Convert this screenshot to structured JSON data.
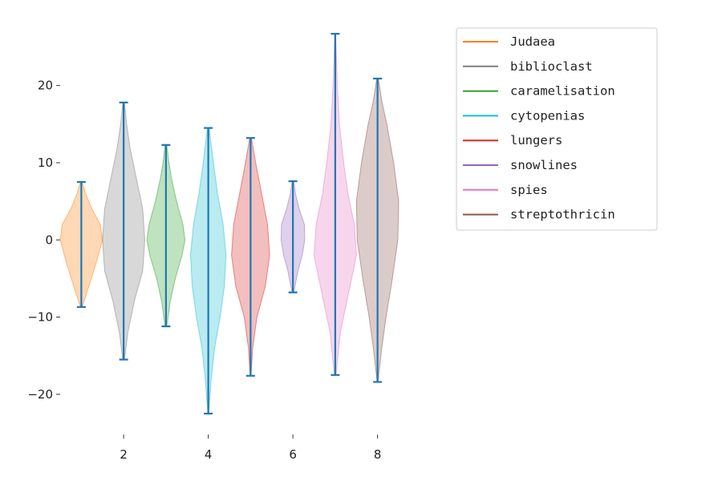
{
  "chart_data": {
    "type": "violin",
    "title": "",
    "xlabel": "",
    "ylabel": "",
    "xlim": [
      0.5,
      8.5
    ],
    "ylim": [
      -25,
      29
    ],
    "x_ticks": [
      2,
      4,
      6,
      8
    ],
    "y_ticks": [
      -20,
      -10,
      0,
      10,
      20
    ],
    "grid": false,
    "legend": {
      "placement": "upper-right-outside",
      "entries": [
        {
          "label": "Judaea",
          "color": "#ff7f0e"
        },
        {
          "label": "biblioclast",
          "color": "#7f7f7f"
        },
        {
          "label": "caramelisation",
          "color": "#2ca02c"
        },
        {
          "label": "cytopenias",
          "color": "#17becf"
        },
        {
          "label": "lungers",
          "color": "#d62728"
        },
        {
          "label": "snowlines",
          "color": "#9467bd"
        },
        {
          "label": "spies",
          "color": "#e377c2"
        },
        {
          "label": "streptothricin",
          "color": "#8c564b"
        }
      ]
    },
    "extrema_color": "#1f77b4",
    "series": [
      {
        "x": 1,
        "min": -8.7,
        "max": 7.5,
        "color": "#ff7f0e",
        "profile": [
          [
            -8.7,
            0.02
          ],
          [
            -6,
            0.18
          ],
          [
            -3,
            0.35
          ],
          [
            0,
            0.5
          ],
          [
            2,
            0.45
          ],
          [
            4,
            0.25
          ],
          [
            6,
            0.1
          ],
          [
            7.5,
            0.02
          ]
        ]
      },
      {
        "x": 2,
        "min": -15.5,
        "max": 17.8,
        "color": "#7f7f7f",
        "profile": [
          [
            -15.5,
            0.02
          ],
          [
            -12,
            0.1
          ],
          [
            -8,
            0.25
          ],
          [
            -4,
            0.45
          ],
          [
            0,
            0.5
          ],
          [
            4,
            0.45
          ],
          [
            8,
            0.3
          ],
          [
            12,
            0.15
          ],
          [
            15,
            0.07
          ],
          [
            17.8,
            0.02
          ]
        ]
      },
      {
        "x": 3,
        "min": -11.2,
        "max": 12.3,
        "color": "#2ca02c",
        "profile": [
          [
            -11.2,
            0.02
          ],
          [
            -8,
            0.1
          ],
          [
            -5,
            0.22
          ],
          [
            -2,
            0.38
          ],
          [
            0,
            0.45
          ],
          [
            2,
            0.4
          ],
          [
            5,
            0.25
          ],
          [
            8,
            0.13
          ],
          [
            10,
            0.07
          ],
          [
            12.3,
            0.02
          ]
        ]
      },
      {
        "x": 4,
        "min": -22.5,
        "max": 14.5,
        "color": "#17becf",
        "profile": [
          [
            -22.5,
            0.01
          ],
          [
            -18,
            0.07
          ],
          [
            -14,
            0.15
          ],
          [
            -10,
            0.28
          ],
          [
            -6,
            0.38
          ],
          [
            -2,
            0.42
          ],
          [
            2,
            0.35
          ],
          [
            6,
            0.22
          ],
          [
            10,
            0.12
          ],
          [
            14.5,
            0.02
          ]
        ]
      },
      {
        "x": 5,
        "min": -17.6,
        "max": 13.2,
        "color": "#d62728",
        "profile": [
          [
            -17.6,
            0.01
          ],
          [
            -14,
            0.05
          ],
          [
            -10,
            0.15
          ],
          [
            -6,
            0.35
          ],
          [
            -2,
            0.45
          ],
          [
            2,
            0.4
          ],
          [
            6,
            0.26
          ],
          [
            10,
            0.12
          ],
          [
            13.2,
            0.02
          ]
        ]
      },
      {
        "x": 6,
        "min": -6.8,
        "max": 7.6,
        "color": "#9467bd",
        "profile": [
          [
            -6.8,
            0.02
          ],
          [
            -4,
            0.12
          ],
          [
            -2,
            0.22
          ],
          [
            0,
            0.28
          ],
          [
            2,
            0.27
          ],
          [
            4,
            0.15
          ],
          [
            6,
            0.06
          ],
          [
            7.6,
            0.02
          ]
        ]
      },
      {
        "x": 7,
        "min": -17.5,
        "max": 26.7,
        "color": "#e377c2",
        "profile": [
          [
            -17.5,
            0.02
          ],
          [
            -12,
            0.12
          ],
          [
            -6,
            0.35
          ],
          [
            -2,
            0.5
          ],
          [
            2,
            0.45
          ],
          [
            6,
            0.3
          ],
          [
            10,
            0.2
          ],
          [
            15,
            0.1
          ],
          [
            20,
            0.05
          ],
          [
            26.7,
            0.01
          ]
        ]
      },
      {
        "x": 8,
        "min": -18.4,
        "max": 20.9,
        "color": "#8c564b",
        "profile": [
          [
            -18.4,
            0.01
          ],
          [
            -14,
            0.1
          ],
          [
            -10,
            0.2
          ],
          [
            -5,
            0.35
          ],
          [
            0,
            0.48
          ],
          [
            5,
            0.5
          ],
          [
            10,
            0.38
          ],
          [
            15,
            0.22
          ],
          [
            18,
            0.1
          ],
          [
            20.9,
            0.02
          ]
        ]
      }
    ]
  }
}
